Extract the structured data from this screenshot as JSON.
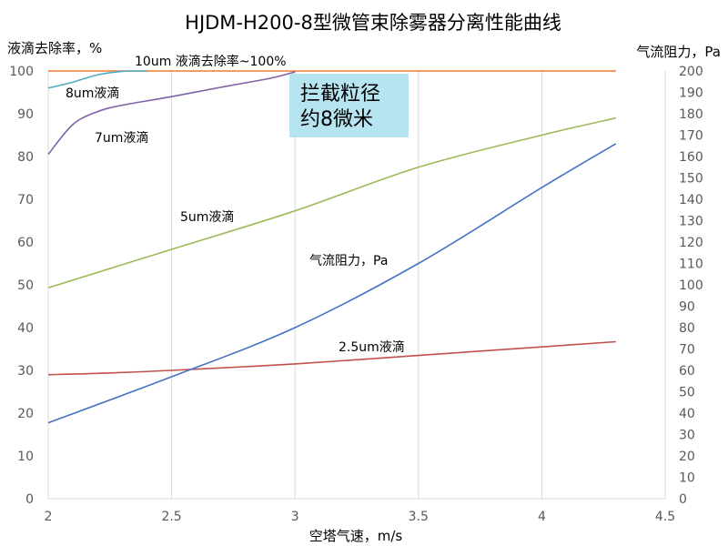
{
  "chart_data": {
    "type": "line",
    "title": "HJDM-H200-8型微管束除雾器分离性能曲线",
    "xlabel": "空塔气速，m/s",
    "ylabel_left": "液滴去除率，%",
    "ylabel_right": "气流阻力，Pa",
    "xlim": [
      2,
      4.5
    ],
    "ylim_left": [
      0,
      100
    ],
    "ylim_right": [
      0,
      200
    ],
    "xticks": [
      "2",
      "2.5",
      "3",
      "3.5",
      "4",
      "4.5"
    ],
    "yticks_left": [
      "0",
      "10",
      "20",
      "30",
      "40",
      "50",
      "60",
      "70",
      "80",
      "90",
      "100"
    ],
    "yticks_right": [
      "0",
      "10",
      "20",
      "30",
      "40",
      "50",
      "60",
      "70",
      "80",
      "90",
      "100",
      "110",
      "120",
      "130",
      "140",
      "150",
      "160",
      "170",
      "180",
      "190",
      "200"
    ],
    "grid": "vertical",
    "callout": {
      "lines": [
        "拦截粒径",
        "约8微米"
      ]
    },
    "series": [
      {
        "name": "10um 液滴去除率~100%",
        "axis": "left",
        "color": "#ED7D31",
        "x": [
          2.0,
          4.3
        ],
        "y": [
          100,
          100
        ]
      },
      {
        "name": "8um液滴",
        "axis": "left",
        "color": "#4BACC6",
        "x": [
          2.0,
          2.1,
          2.2,
          2.3,
          2.4
        ],
        "y": [
          96,
          97.4,
          99.1,
          99.9,
          100
        ]
      },
      {
        "name": "7um液滴",
        "axis": "left",
        "color": "#7F63A6",
        "x": [
          2.0,
          2.1,
          2.2,
          2.3,
          2.5,
          2.7,
          2.9,
          3.0
        ],
        "y": [
          80.5,
          87.5,
          90.5,
          92,
          94,
          96.2,
          98.3,
          99.8
        ]
      },
      {
        "name": "5um液滴",
        "axis": "left",
        "color": "#9BBB59",
        "x": [
          2.0,
          2.5,
          3.0,
          3.5,
          4.0,
          4.3
        ],
        "y": [
          49.3,
          58.3,
          67.3,
          77.5,
          85,
          89
        ]
      },
      {
        "name": "2.5um液滴",
        "axis": "left",
        "color": "#C0504D",
        "x": [
          2.0,
          2.2,
          2.5,
          3.0,
          3.5,
          4.0,
          4.3
        ],
        "y": [
          29,
          29.3,
          30,
          31.5,
          33.5,
          35.5,
          36.7
        ]
      },
      {
        "name": "气流阻力，Pa",
        "axis": "right",
        "color": "#4472C4",
        "x": [
          2.0,
          2.5,
          3.0,
          3.5,
          4.0,
          4.3
        ],
        "y": [
          35.5,
          57,
          80,
          110,
          145.5,
          166
        ]
      }
    ]
  }
}
